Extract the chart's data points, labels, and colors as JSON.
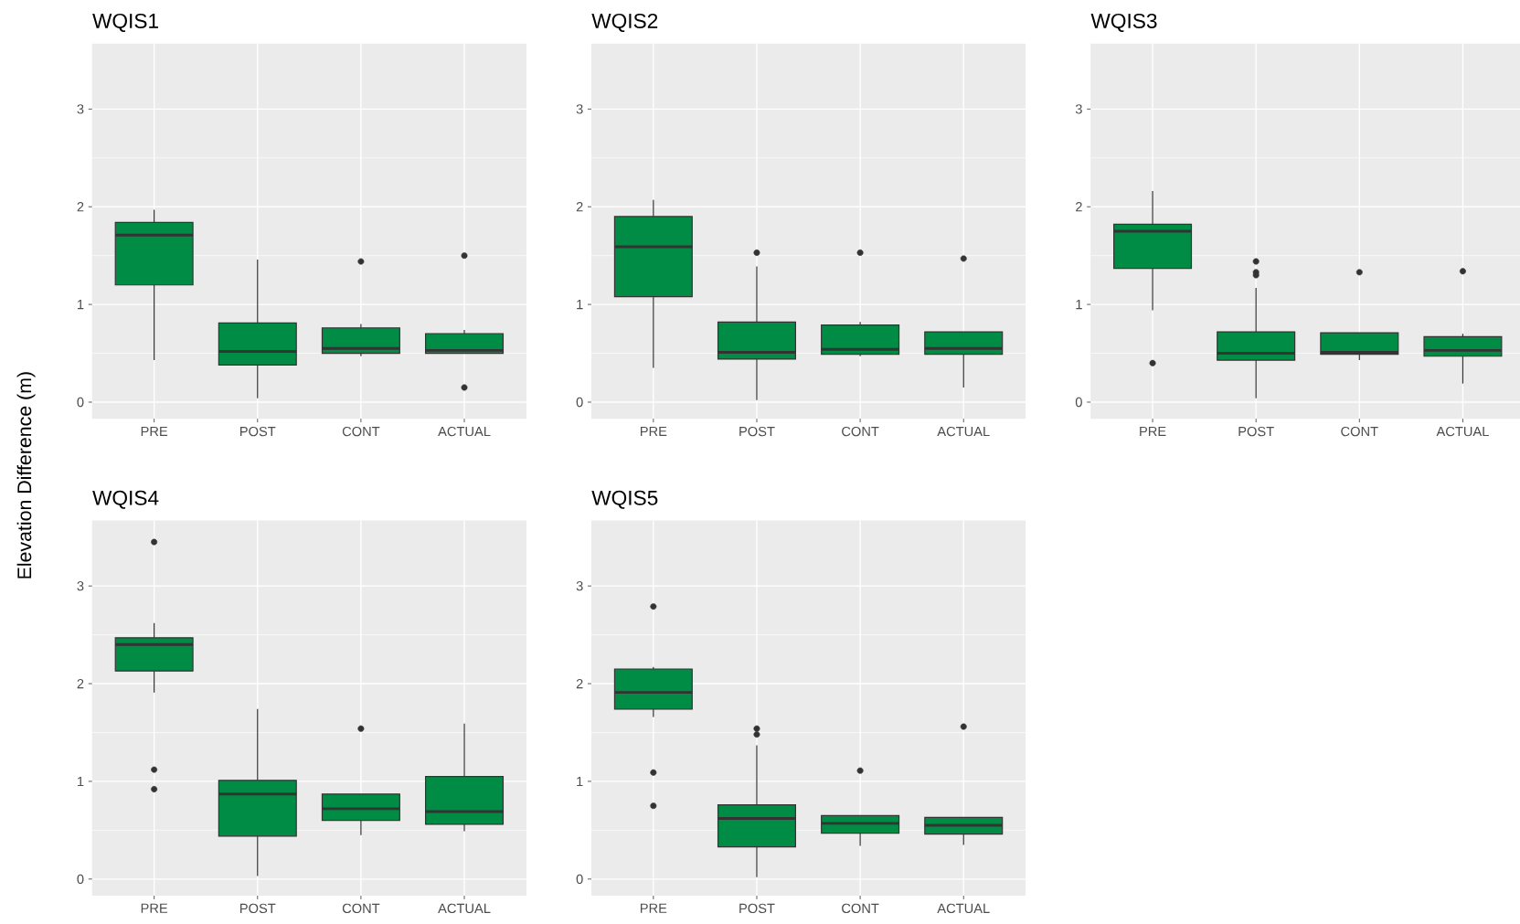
{
  "chart_data": [
    {
      "type": "box",
      "title": "WQIS1",
      "ylabel": "Elevation Difference (m)",
      "categories": [
        "PRE",
        "POST",
        "CONT",
        "ACTUAL"
      ],
      "ylim": [
        -0.17,
        3.67
      ],
      "yticks": [
        0,
        1,
        2,
        3
      ],
      "grid": true,
      "series": [
        {
          "color": "#008C45",
          "boxes": [
            {
              "low": 0.43,
              "q1": 1.2,
              "median": 1.71,
              "q3": 1.84,
              "high": 1.97
            },
            {
              "low": 0.04,
              "q1": 0.38,
              "median": 0.52,
              "q3": 0.81,
              "high": 1.46
            },
            {
              "low": 0.47,
              "q1": 0.5,
              "median": 0.55,
              "q3": 0.76,
              "high": 0.8,
              "outliers": [
                1.44
              ]
            },
            {
              "low": 0.5,
              "q1": 0.5,
              "median": 0.53,
              "q3": 0.7,
              "high": 0.74,
              "outliers": [
                1.5,
                0.15
              ]
            }
          ]
        }
      ]
    },
    {
      "type": "box",
      "title": "WQIS2",
      "categories": [
        "PRE",
        "POST",
        "CONT",
        "ACTUAL"
      ],
      "ylim": [
        -0.17,
        3.67
      ],
      "yticks": [
        0,
        1,
        2,
        3
      ],
      "grid": true,
      "series": [
        {
          "color": "#008C45",
          "boxes": [
            {
              "low": 0.35,
              "q1": 1.08,
              "median": 1.59,
              "q3": 1.9,
              "high": 2.07
            },
            {
              "low": 0.02,
              "q1": 0.44,
              "median": 0.51,
              "q3": 0.82,
              "high": 1.39,
              "outliers": [
                1.53
              ]
            },
            {
              "low": 0.47,
              "q1": 0.49,
              "median": 0.54,
              "q3": 0.79,
              "high": 0.82,
              "outliers": [
                1.53
              ]
            },
            {
              "low": 0.15,
              "q1": 0.49,
              "median": 0.55,
              "q3": 0.72,
              "high": 0.72,
              "outliers": [
                1.47
              ]
            }
          ]
        }
      ]
    },
    {
      "type": "box",
      "title": "WQIS3",
      "categories": [
        "PRE",
        "POST",
        "CONT",
        "ACTUAL"
      ],
      "ylim": [
        -0.17,
        3.67
      ],
      "yticks": [
        0,
        1,
        2,
        3
      ],
      "grid": true,
      "series": [
        {
          "color": "#008C45",
          "boxes": [
            {
              "low": 0.94,
              "q1": 1.37,
              "median": 1.75,
              "q3": 1.82,
              "high": 2.16,
              "outliers": [
                0.4
              ]
            },
            {
              "low": 0.04,
              "q1": 0.43,
              "median": 0.5,
              "q3": 0.72,
              "high": 1.17,
              "outliers": [
                1.44,
                1.33,
                1.3
              ]
            },
            {
              "low": 0.43,
              "q1": 0.49,
              "median": 0.51,
              "q3": 0.71,
              "high": 0.71,
              "outliers": [
                1.33
              ]
            },
            {
              "low": 0.19,
              "q1": 0.47,
              "median": 0.53,
              "q3": 0.67,
              "high": 0.7,
              "outliers": [
                1.34
              ]
            }
          ]
        }
      ]
    },
    {
      "type": "box",
      "title": "WQIS4",
      "categories": [
        "PRE",
        "POST",
        "CONT",
        "ACTUAL"
      ],
      "ylim": [
        -0.17,
        3.67
      ],
      "yticks": [
        0,
        1,
        2,
        3
      ],
      "grid": true,
      "series": [
        {
          "color": "#008C45",
          "boxes": [
            {
              "low": 1.91,
              "q1": 2.13,
              "median": 2.4,
              "q3": 2.47,
              "high": 2.62,
              "outliers": [
                3.45,
                1.12,
                0.92
              ]
            },
            {
              "low": 0.03,
              "q1": 0.44,
              "median": 0.87,
              "q3": 1.01,
              "high": 1.74
            },
            {
              "low": 0.45,
              "q1": 0.6,
              "median": 0.72,
              "q3": 0.87,
              "high": 0.87,
              "outliers": [
                1.54
              ]
            },
            {
              "low": 0.49,
              "q1": 0.56,
              "median": 0.69,
              "q3": 1.05,
              "high": 1.59
            }
          ]
        }
      ]
    },
    {
      "type": "box",
      "title": "WQIS5",
      "categories": [
        "PRE",
        "POST",
        "CONT",
        "ACTUAL"
      ],
      "ylim": [
        -0.17,
        3.67
      ],
      "yticks": [
        0,
        1,
        2,
        3
      ],
      "grid": true,
      "series": [
        {
          "color": "#008C45",
          "boxes": [
            {
              "low": 1.66,
              "q1": 1.74,
              "median": 1.91,
              "q3": 2.15,
              "high": 2.17,
              "outliers": [
                2.79,
                1.09,
                0.75
              ]
            },
            {
              "low": 0.02,
              "q1": 0.33,
              "median": 0.62,
              "q3": 0.76,
              "high": 1.37,
              "outliers": [
                1.54,
                1.48
              ]
            },
            {
              "low": 0.34,
              "q1": 0.47,
              "median": 0.57,
              "q3": 0.65,
              "high": 0.65,
              "outliers": [
                1.11
              ]
            },
            {
              "low": 0.35,
              "q1": 0.46,
              "median": 0.55,
              "q3": 0.63,
              "high": 0.63,
              "outliers": [
                1.56
              ]
            }
          ]
        }
      ]
    }
  ]
}
